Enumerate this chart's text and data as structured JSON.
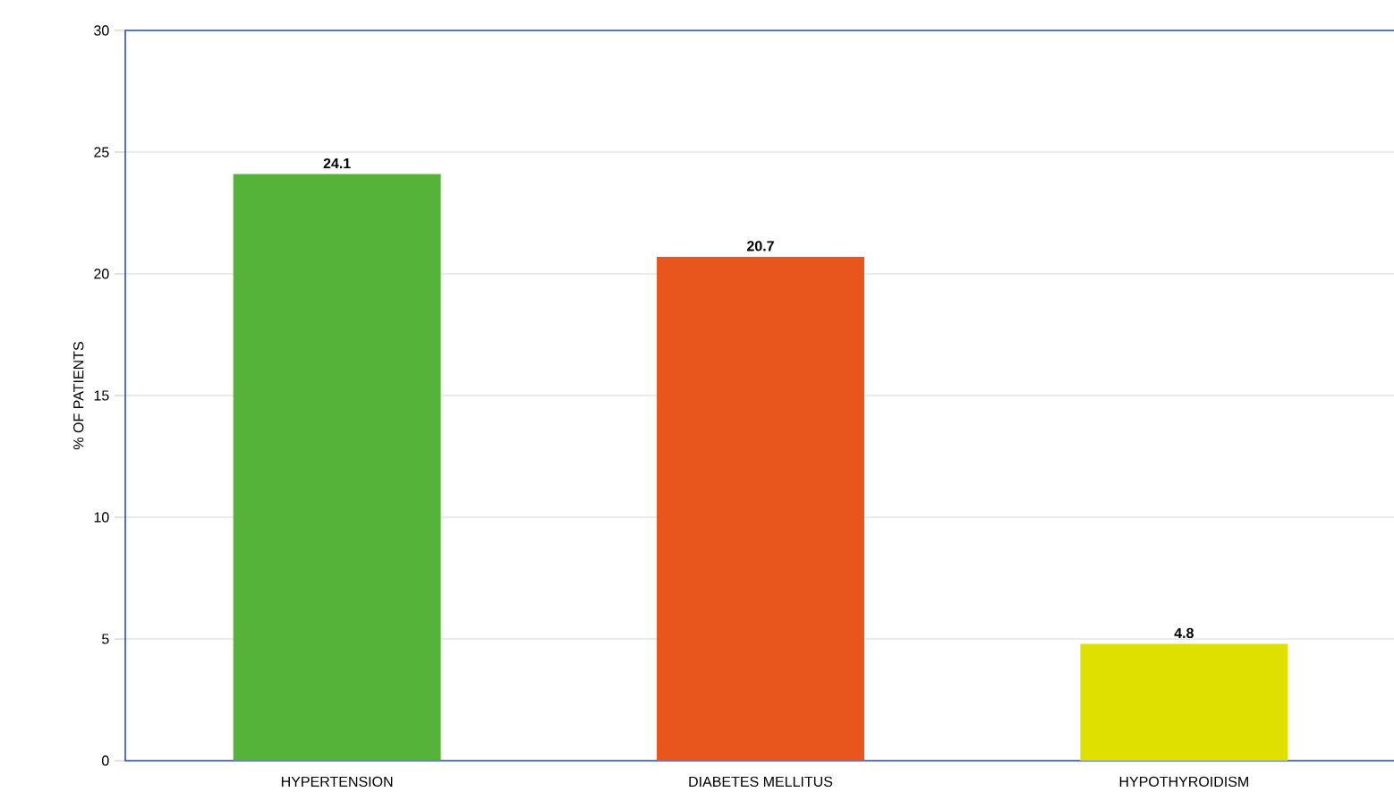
{
  "chart_data": {
    "type": "bar",
    "ylabel": "% OF PATIENTS",
    "categories": [
      "HYPERTENSION",
      "DIABETES MELLITUS",
      "HYPOTHYROIDISM"
    ],
    "values": [
      24.1,
      20.7,
      4.8
    ],
    "colors": [
      "#56b33a",
      "#e8561e",
      "#dfe000"
    ],
    "ylim": [
      0,
      30
    ],
    "yticks": [
      0,
      5,
      10,
      15,
      20,
      25,
      30
    ],
    "grid": "y",
    "data_labels": true
  }
}
